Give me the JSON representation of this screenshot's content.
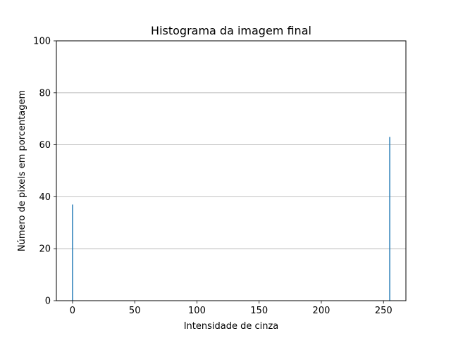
{
  "chart_data": {
    "type": "bar",
    "title": "Histograma da imagem final",
    "xlabel": "Intensidade de cinza",
    "ylabel": "Número de pixels em porcentagem",
    "xlim": [
      -13,
      268
    ],
    "ylim": [
      0,
      100
    ],
    "xticks": [
      0,
      50,
      100,
      150,
      200,
      250
    ],
    "yticks": [
      0,
      20,
      40,
      60,
      80,
      100
    ],
    "grid": {
      "y": true,
      "x": false,
      "color": "#b0b0b0"
    },
    "bar_color": "#1f77b4",
    "series": [
      {
        "values": [
          {
            "x": 0,
            "y": 37
          },
          {
            "x": 255,
            "y": 63
          }
        ]
      }
    ]
  }
}
